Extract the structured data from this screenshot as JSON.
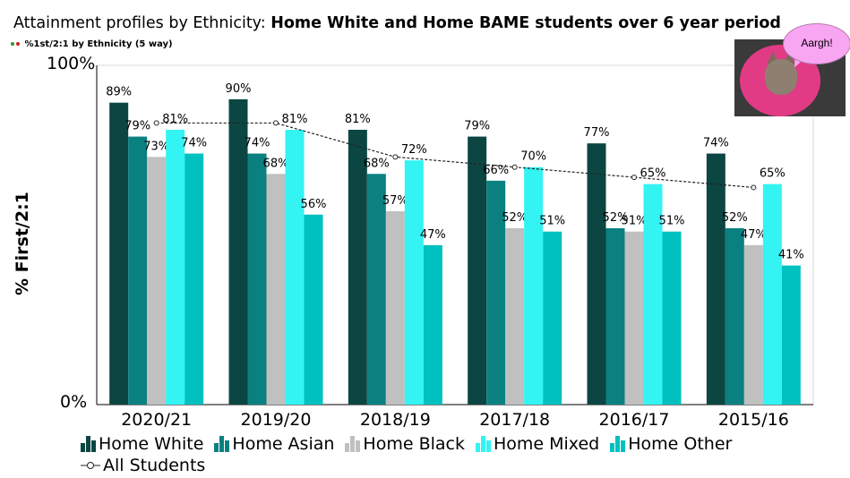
{
  "title_plain": "Attainment profiles by Ethnicity: ",
  "title_bold": "Home White and Home BAME students over 6 year period",
  "subtitle": "%1st/2:1 by Ethnicity (5 way)",
  "bubble_text": "Aargh!",
  "chart_data": {
    "type": "bar",
    "title": "Attainment profiles by Ethnicity: Home White and Home BAME students over 6 year period",
    "ylabel": "% First/2:1",
    "xlabel": "",
    "ylim": [
      0,
      100
    ],
    "yticks": [
      "0%",
      "100%"
    ],
    "categories": [
      "2020/21",
      "2019/20",
      "2018/19",
      "2017/18",
      "2016/17",
      "2015/16"
    ],
    "series": [
      {
        "name": "Home White",
        "color": "#0b4642",
        "values": [
          89,
          90,
          81,
          79,
          77,
          74
        ]
      },
      {
        "name": "Home Asian",
        "color": "#0b8081",
        "values": [
          79,
          74,
          68,
          66,
          52,
          52
        ]
      },
      {
        "name": "Home Black",
        "color": "#c0c0c0",
        "values": [
          73,
          68,
          57,
          52,
          51,
          47
        ]
      },
      {
        "name": "Home Mixed",
        "color": "#33f3f3",
        "values": [
          81,
          81,
          72,
          70,
          65,
          65
        ]
      },
      {
        "name": "Home Other",
        "color": "#00c0c0",
        "values": [
          74,
          56,
          47,
          51,
          51,
          41
        ]
      }
    ],
    "line_series": {
      "name": "All Students",
      "values": [
        83,
        83,
        73,
        70,
        67,
        64
      ]
    }
  }
}
